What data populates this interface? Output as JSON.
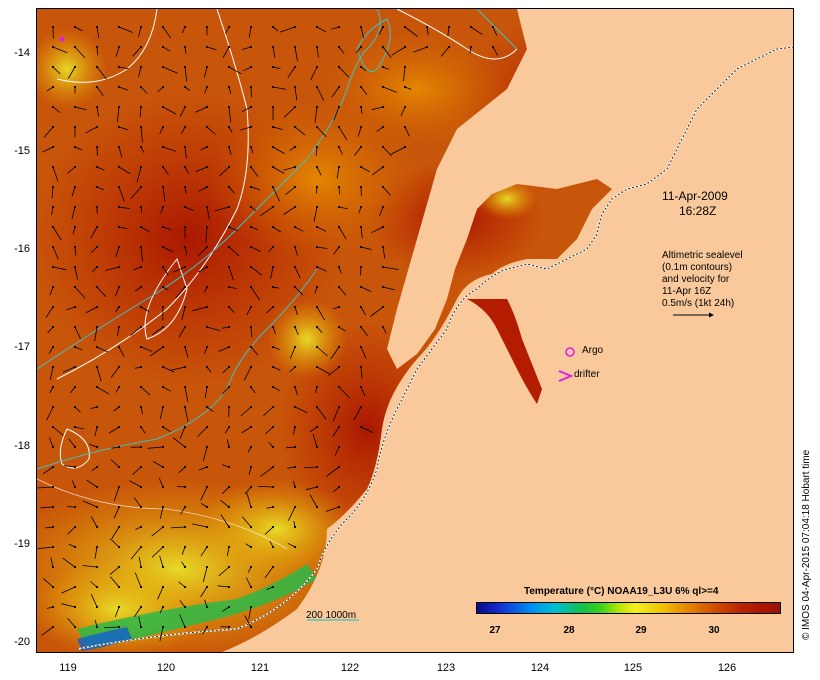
{
  "map": {
    "date_label": "11-Apr-2009",
    "time_label": "16:28Z",
    "legend_lines": [
      "Altimetric sealevel",
      "(0.1m contours)",
      "and velocity for",
      "11-Apr 16Z",
      "0.5m/s (1kt 24h)"
    ],
    "argo_label": "Argo",
    "drifter_label": "drifter",
    "depth_label": "200  1000m",
    "credit": "© IMOS 04-Apr-2015 07:04:18 Hobart time",
    "lat_ticks": [
      "-14",
      "-15",
      "-16",
      "-17",
      "-18",
      "-19",
      "-20"
    ],
    "lon_ticks": [
      "119",
      "120",
      "121",
      "122",
      "123",
      "124",
      "125",
      "126"
    ]
  },
  "colorbar": {
    "title": "Temperature (°C) NOAA19_L3U 6% ql>=4",
    "ticks": [
      "27",
      "28",
      "29",
      "30"
    ]
  },
  "colors": {
    "land": "#f9c99c",
    "sst_hot": "#b41c00",
    "sst_warm": "#d25a00",
    "sst_mid": "#e89a00",
    "sst_cool": "#e0e020",
    "sst_cold": "#30c840",
    "contour_200": "#40c0c0",
    "argo": "#e020e0"
  }
}
